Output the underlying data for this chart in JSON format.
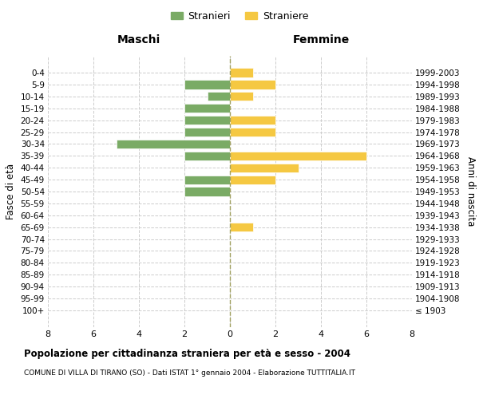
{
  "age_groups": [
    "100+",
    "95-99",
    "90-94",
    "85-89",
    "80-84",
    "75-79",
    "70-74",
    "65-69",
    "60-64",
    "55-59",
    "50-54",
    "45-49",
    "40-44",
    "35-39",
    "30-34",
    "25-29",
    "20-24",
    "15-19",
    "10-14",
    "5-9",
    "0-4"
  ],
  "birth_years": [
    "≤ 1903",
    "1904-1908",
    "1909-1913",
    "1914-1918",
    "1919-1923",
    "1924-1928",
    "1929-1933",
    "1934-1938",
    "1939-1943",
    "1944-1948",
    "1949-1953",
    "1954-1958",
    "1959-1963",
    "1964-1968",
    "1969-1973",
    "1974-1978",
    "1979-1983",
    "1984-1988",
    "1989-1993",
    "1994-1998",
    "1999-2003"
  ],
  "males": [
    0,
    0,
    0,
    0,
    0,
    0,
    0,
    0,
    0,
    0,
    2,
    2,
    0,
    2,
    5,
    2,
    2,
    2,
    1,
    2,
    0
  ],
  "females": [
    0,
    0,
    0,
    0,
    0,
    0,
    0,
    1,
    0,
    0,
    0,
    2,
    3,
    6,
    0,
    2,
    2,
    0,
    1,
    2,
    1
  ],
  "male_color": "#7aab65",
  "female_color": "#f5c842",
  "center_line_color": "#a0a060",
  "grid_color": "#cccccc",
  "bg_color": "#ffffff",
  "title": "Popolazione per cittadinanza straniera per età e sesso - 2004",
  "subtitle": "COMUNE DI VILLA DI TIRANO (SO) - Dati ISTAT 1° gennaio 2004 - Elaborazione TUTTITALIA.IT",
  "ylabel_left": "Fasce di età",
  "ylabel_right": "Anni di nascita",
  "xlabel_maschi": "Maschi",
  "xlabel_femmine": "Femmine",
  "legend_male": "Stranieri",
  "legend_female": "Straniere",
  "xlim": 8,
  "bar_height": 0.75
}
